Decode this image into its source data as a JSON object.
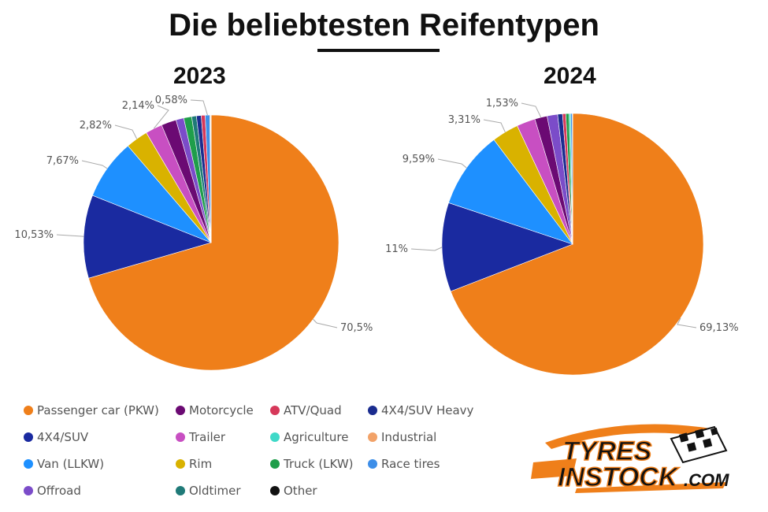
{
  "title": "Die beliebtesten Reifentypen",
  "logo": {
    "line1": "TYRES",
    "line2": "INSTOCK",
    "suffix": ".COM"
  },
  "colors": {
    "Passenger car (PKW)": "#ef7f1a",
    "Motorcycle": "#6b0a73",
    "ATV/Quad": "#d6385a",
    "4X4/SUV Heavy": "#1a2c8f",
    "4X4/SUV": "#1a2aa0",
    "Trailer": "#c84fc2",
    "Agriculture": "#3fd9c8",
    "Industrial": "#f2a268",
    "Van (LLKW)": "#1e90ff",
    "Rim": "#d9b200",
    "Truck (LKW)": "#1f9e4a",
    "Race tires": "#3d8ee8",
    "Offroad": "#7b4cc9",
    "Oldtimer": "#1f7a78",
    "Other": "#111111"
  },
  "legend": [
    "Passenger car (PKW)",
    "Motorcycle",
    "ATV/Quad",
    "4X4/SUV Heavy",
    "4X4/SUV",
    "Trailer",
    "Agriculture",
    "Industrial",
    "Van (LLKW)",
    "Rim",
    "Truck (LKW)",
    "Race tires",
    "Offroad",
    "Oldtimer",
    "Other"
  ],
  "chart_data": [
    {
      "type": "pie",
      "title": "2023",
      "slices": [
        {
          "name": "Passenger car (PKW)",
          "value": 70.5,
          "label": "70,5%"
        },
        {
          "name": "4X4/SUV",
          "value": 10.53,
          "label": "10,53%"
        },
        {
          "name": "Van (LLKW)",
          "value": 7.67,
          "label": "7,67%"
        },
        {
          "name": "Rim",
          "value": 2.82,
          "label": "2,82%"
        },
        {
          "name": "Trailer",
          "value": 2.14,
          "label": "2,14%"
        },
        {
          "name": "Motorcycle",
          "value": 1.9,
          "label": ""
        },
        {
          "name": "Offroad",
          "value": 1.0,
          "label": ""
        },
        {
          "name": "Truck (LKW)",
          "value": 1.0,
          "label": ""
        },
        {
          "name": "Oldtimer",
          "value": 0.6,
          "label": ""
        },
        {
          "name": "4X4/SUV Heavy",
          "value": 0.6,
          "label": ""
        },
        {
          "name": "ATV/Quad",
          "value": 0.5,
          "label": ""
        },
        {
          "name": "Race tires",
          "value": 0.58,
          "label": "0,58%"
        },
        {
          "name": "Industrial",
          "value": 0.1,
          "label": ""
        },
        {
          "name": "Agriculture",
          "value": 0.05,
          "label": ""
        },
        {
          "name": "Other",
          "value": 0.01,
          "label": ""
        }
      ]
    },
    {
      "type": "pie",
      "title": "2024",
      "slices": [
        {
          "name": "Passenger car (PKW)",
          "value": 69.13,
          "label": "69,13%"
        },
        {
          "name": "4X4/SUV",
          "value": 11.0,
          "label": "11%"
        },
        {
          "name": "Van (LLKW)",
          "value": 9.59,
          "label": "9,59%"
        },
        {
          "name": "Rim",
          "value": 3.31,
          "label": "3,31%"
        },
        {
          "name": "Trailer",
          "value": 2.3,
          "label": ""
        },
        {
          "name": "Motorcycle",
          "value": 1.53,
          "label": "1,53%"
        },
        {
          "name": "Offroad",
          "value": 1.3,
          "label": ""
        },
        {
          "name": "4X4/SUV Heavy",
          "value": 0.6,
          "label": ""
        },
        {
          "name": "ATV/Quad",
          "value": 0.4,
          "label": ""
        },
        {
          "name": "Truck (LKW)",
          "value": 0.4,
          "label": ""
        },
        {
          "name": "Agriculture",
          "value": 0.2,
          "label": ""
        },
        {
          "name": "Race tires",
          "value": 0.2,
          "label": ""
        },
        {
          "name": "Industrial",
          "value": 0.02,
          "label": ""
        },
        {
          "name": "Oldtimer",
          "value": 0.01,
          "label": ""
        },
        {
          "name": "Other",
          "value": 0.01,
          "label": ""
        }
      ]
    }
  ]
}
